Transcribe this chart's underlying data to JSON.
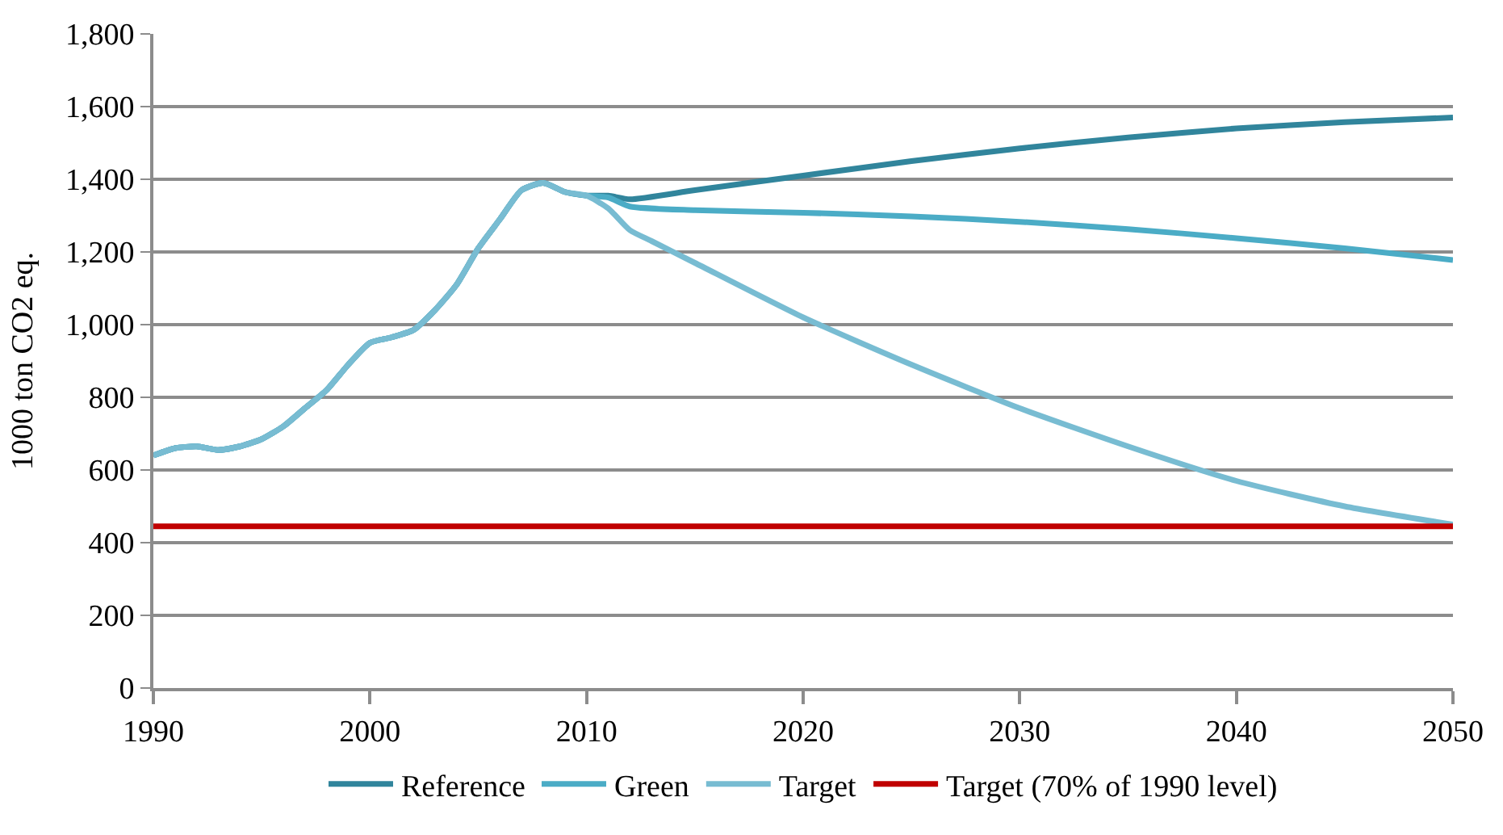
{
  "chart_data": {
    "type": "line",
    "ylabel": "1000 ton CO2 eq.",
    "xlim": [
      1990,
      2050
    ],
    "xticks": [
      1990,
      2000,
      2010,
      2020,
      2030,
      2040,
      2050
    ],
    "ylim": [
      0,
      1800
    ],
    "yticks": [
      0,
      200,
      400,
      600,
      800,
      {
        "value": 1000,
        "label": "1,000"
      },
      {
        "value": 1200,
        "label": "1,200"
      },
      {
        "value": 1400,
        "label": "1,400"
      },
      {
        "value": 1600,
        "label": "1,600"
      },
      {
        "value": 1800,
        "label": "1,800"
      }
    ],
    "grid": "y",
    "legend": "bottom",
    "marker": "none",
    "line_style": "solid",
    "series": [
      {
        "name": "Reference",
        "color": "#31859c",
        "x": [
          1990,
          1991,
          1992,
          1993,
          1994,
          1995,
          1996,
          1997,
          1998,
          1999,
          2000,
          2001,
          2002,
          2003,
          2004,
          2005,
          2006,
          2007,
          2008,
          2009,
          2010,
          2011,
          2012,
          2015,
          2020,
          2025,
          2030,
          2035,
          2040,
          2045,
          2050
        ],
        "values": [
          640,
          660,
          665,
          655,
          665,
          685,
          720,
          770,
          820,
          890,
          950,
          965,
          985,
          1040,
          1110,
          1210,
          1290,
          1370,
          1390,
          1365,
          1355,
          1355,
          1345,
          1370,
          1410,
          1450,
          1485,
          1515,
          1540,
          1557,
          1570
        ]
      },
      {
        "name": "Green",
        "color": "#4bacc6",
        "x": [
          1990,
          1991,
          1992,
          1993,
          1994,
          1995,
          1996,
          1997,
          1998,
          1999,
          2000,
          2001,
          2002,
          2003,
          2004,
          2005,
          2006,
          2007,
          2008,
          2009,
          2010,
          2011,
          2012,
          2015,
          2020,
          2025,
          2030,
          2035,
          2040,
          2045,
          2050
        ],
        "values": [
          640,
          660,
          665,
          655,
          665,
          685,
          720,
          770,
          820,
          890,
          950,
          965,
          985,
          1040,
          1110,
          1210,
          1290,
          1370,
          1390,
          1365,
          1355,
          1350,
          1325,
          1315,
          1308,
          1298,
          1283,
          1263,
          1238,
          1210,
          1178
        ]
      },
      {
        "name": "Target",
        "color": "#78bcd2",
        "x": [
          1990,
          1991,
          1992,
          1993,
          1994,
          1995,
          1996,
          1997,
          1998,
          1999,
          2000,
          2001,
          2002,
          2003,
          2004,
          2005,
          2006,
          2007,
          2008,
          2009,
          2010,
          2011,
          2012,
          2013,
          2015,
          2020,
          2025,
          2030,
          2035,
          2040,
          2045,
          2050
        ],
        "values": [
          640,
          660,
          665,
          655,
          665,
          685,
          720,
          770,
          820,
          890,
          950,
          965,
          985,
          1040,
          1110,
          1210,
          1290,
          1370,
          1390,
          1365,
          1355,
          1320,
          1260,
          1230,
          1170,
          1020,
          890,
          770,
          665,
          570,
          500,
          450
        ]
      },
      {
        "name": "Target (70% of 1990 level)",
        "color": "#c00000",
        "x": [
          1990,
          2050
        ],
        "values": [
          445,
          445
        ]
      }
    ]
  }
}
